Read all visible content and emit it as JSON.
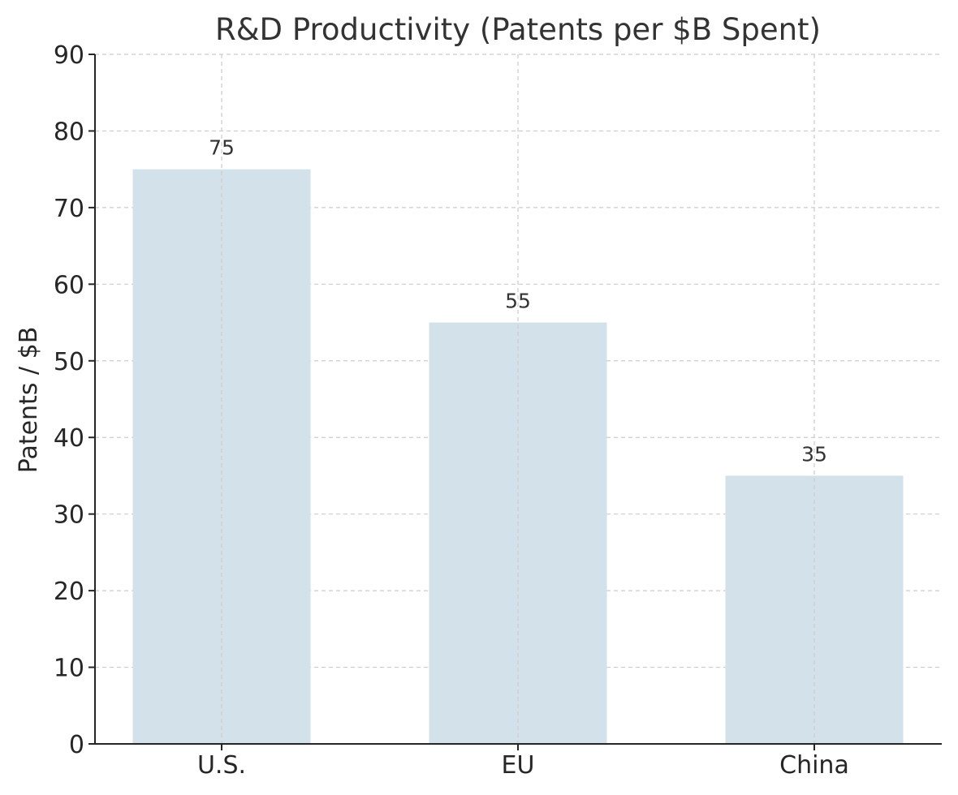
{
  "chart_data": {
    "type": "bar",
    "title": "R&D Productivity (Patents per $B Spent)",
    "xlabel": "",
    "ylabel": "Patents / $B",
    "categories": [
      "U.S.",
      "EU",
      "China"
    ],
    "values": [
      75,
      55,
      35
    ],
    "data_labels": [
      "75",
      "55",
      "35"
    ],
    "ylim": [
      0,
      90
    ],
    "yticks": [
      0,
      10,
      20,
      30,
      40,
      50,
      60,
      70,
      80,
      90
    ],
    "grid": true,
    "legend": "none",
    "colors": {
      "bar": "#d3e1eb",
      "grid": "#cccccc",
      "axis": "#262626"
    }
  }
}
